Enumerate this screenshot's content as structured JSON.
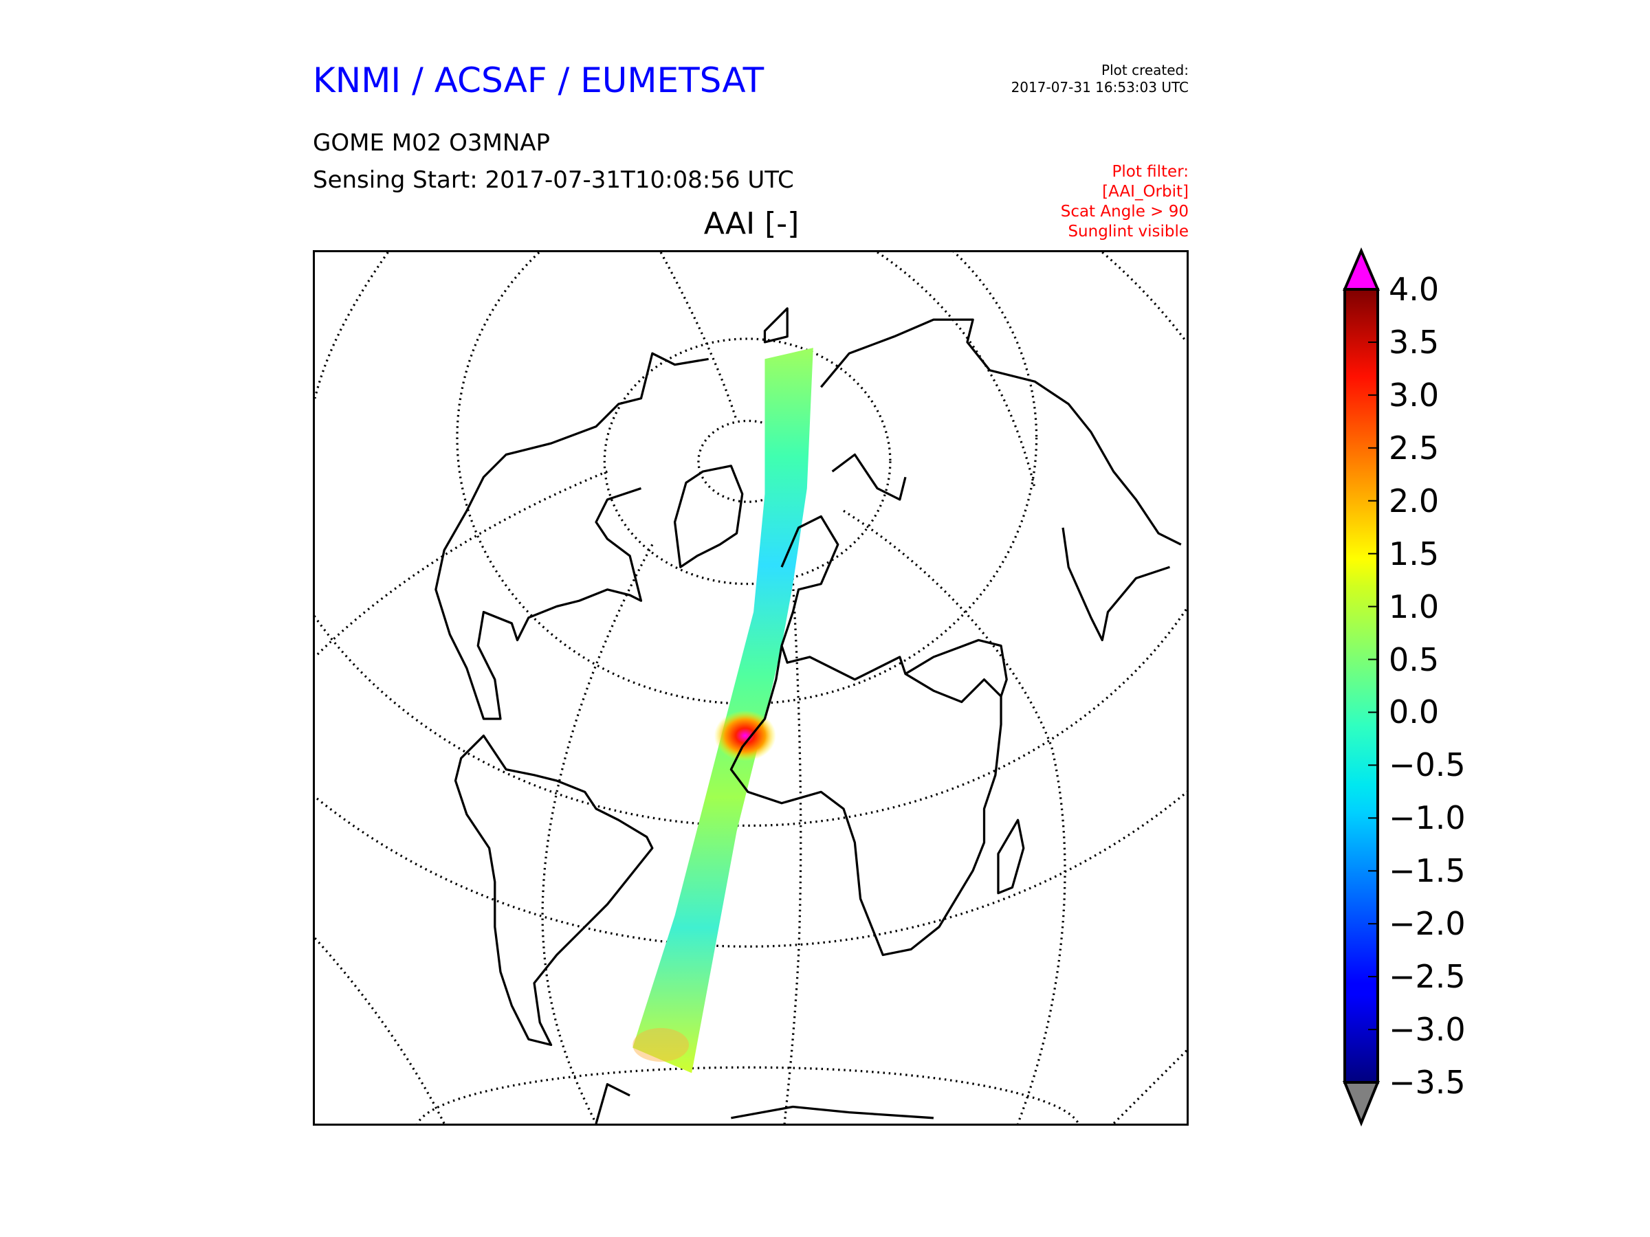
{
  "header": {
    "title": "KNMI / ACSAF / EUMETSAT",
    "product": "GOME M02 O3MNAP",
    "sensing_start": "Sensing Start: 2017-07-31T10:08:56 UTC",
    "plot_title": "AAI [-]",
    "plot_created_label": "Plot created:",
    "plot_created_value": "2017-07-31 16:53:03 UTC",
    "filter_lines": [
      "Plot filter:",
      "[AAI_Orbit]",
      "Scat Angle > 90",
      "Sunglint visible"
    ]
  },
  "colors": {
    "title": "#0000ff",
    "filter": "#ff0000",
    "over": "#ff00ff",
    "under": "#808080"
  },
  "colorbar": {
    "min": -3.5,
    "max": 4.0,
    "colormap": "jet",
    "extend": "both",
    "ticks": [
      "4.0",
      "3.5",
      "3.0",
      "2.5",
      "2.0",
      "1.5",
      "1.0",
      "0.5",
      "0.0",
      "−0.5",
      "−1.0",
      "−1.5",
      "−2.0",
      "−2.5",
      "−3.0",
      "−3.5"
    ]
  }
}
